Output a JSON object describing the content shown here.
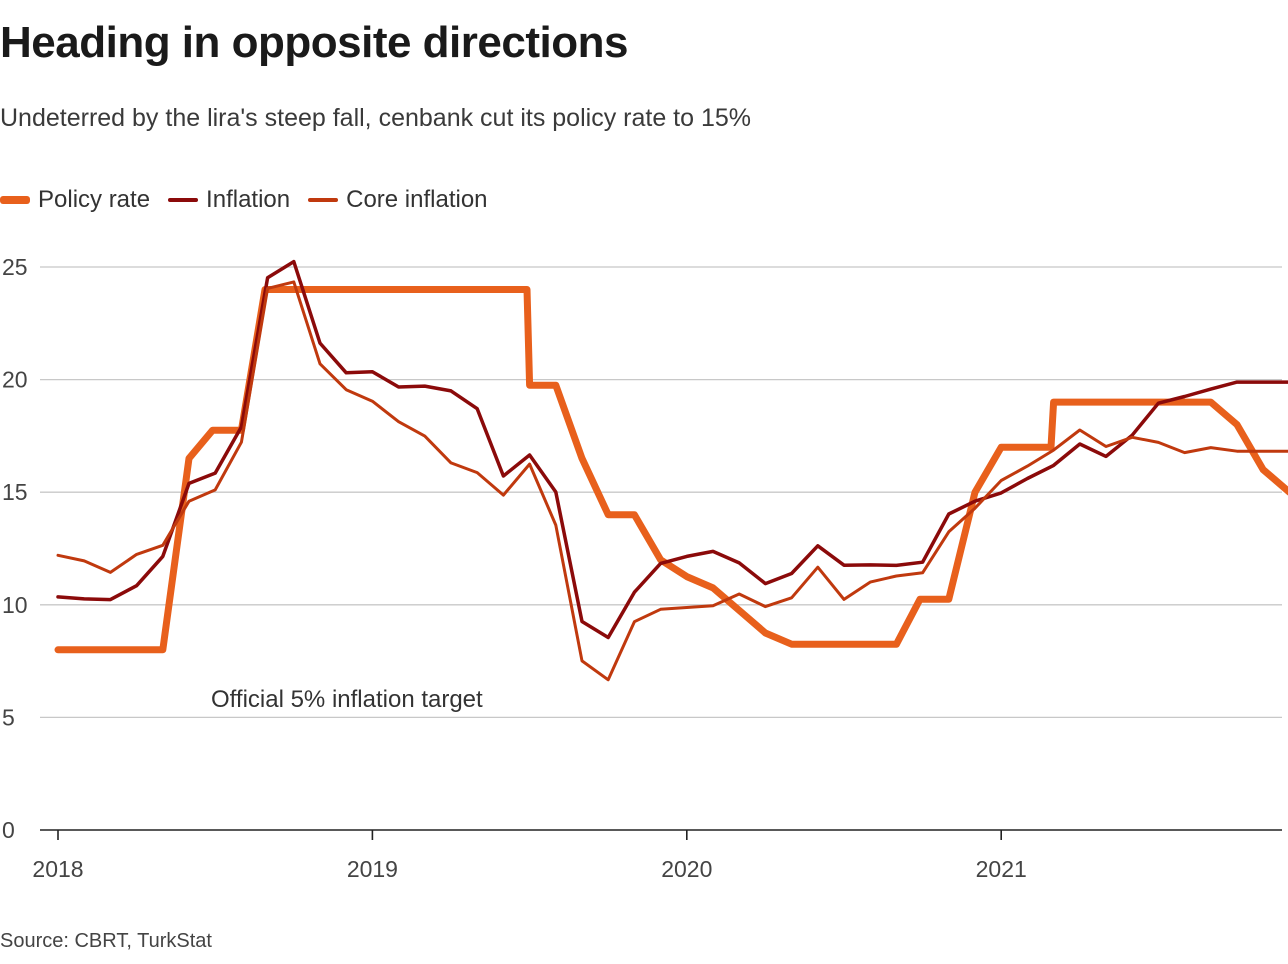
{
  "chart_data": {
    "type": "line",
    "title": "Heading in opposite directions",
    "subtitle": "Undeterred by the lira's steep fall, cenbank cut its policy rate to 15%",
    "xlabel": "",
    "ylabel": "",
    "ylim": [
      0,
      25
    ],
    "yticks": [
      0,
      5,
      10,
      15,
      20,
      25
    ],
    "grid": true,
    "legend_position": "top-left",
    "x_start": "2018-01",
    "x_tick_labels": [
      "2018",
      "2019",
      "2020",
      "2021"
    ],
    "x_tick_months": [
      0,
      12,
      24,
      36
    ],
    "annotation": "Official 5% inflation target",
    "annotation_value": 5,
    "series": [
      {
        "name": "Policy rate",
        "color": "#e8601c",
        "months": [
          0,
          1,
          2,
          3,
          4,
          5,
          5.9,
          6,
          7,
          7.9,
          8,
          9,
          10,
          11,
          12,
          13,
          14,
          15,
          16,
          17,
          17.9,
          18,
          19,
          20,
          21,
          22,
          23,
          24,
          25,
          26,
          27,
          28,
          29,
          30,
          31,
          32,
          32.9,
          33,
          34,
          35,
          36,
          37,
          37.9,
          38,
          39,
          40,
          41,
          42,
          43,
          44,
          45,
          46,
          47
        ],
        "values": [
          8,
          8,
          8,
          8,
          8,
          16.5,
          17.75,
          17.75,
          17.75,
          24,
          24,
          24,
          24,
          24,
          24,
          24,
          24,
          24,
          24,
          24,
          24,
          19.75,
          19.75,
          16.5,
          14,
          14,
          12,
          11.25,
          10.75,
          9.75,
          8.75,
          8.25,
          8.25,
          8.25,
          8.25,
          8.25,
          10.25,
          10.25,
          10.25,
          15,
          17,
          17,
          17,
          19,
          19,
          19,
          19,
          19,
          19,
          19,
          18,
          16,
          15
        ]
      },
      {
        "name": "Inflation",
        "color": "#8b0a0a",
        "months": [
          0,
          1,
          2,
          3,
          4,
          5,
          6,
          7,
          8,
          9,
          10,
          11,
          12,
          13,
          14,
          15,
          16,
          17,
          18,
          19,
          20,
          21,
          22,
          23,
          24,
          25,
          26,
          27,
          28,
          29,
          30,
          31,
          32,
          33,
          34,
          35,
          36,
          37,
          38,
          39,
          40,
          41,
          42,
          43,
          44,
          45,
          46,
          47
        ],
        "values": [
          10.35,
          10.26,
          10.23,
          10.85,
          12.15,
          15.39,
          15.85,
          17.9,
          24.52,
          25.24,
          21.62,
          20.3,
          20.35,
          19.67,
          19.71,
          19.5,
          18.71,
          15.72,
          16.65,
          15.01,
          9.26,
          8.55,
          10.56,
          11.84,
          12.15,
          12.37,
          11.86,
          10.94,
          11.39,
          12.62,
          11.76,
          11.77,
          11.75,
          11.89,
          14.03,
          14.6,
          14.97,
          15.61,
          16.19,
          17.14,
          16.59,
          17.53,
          18.95,
          19.25,
          19.58,
          19.89,
          19.89,
          19.89
        ]
      },
      {
        "name": "Core inflation",
        "color": "#c0390e",
        "months": [
          0,
          1,
          2,
          3,
          4,
          5,
          6,
          7,
          8,
          9,
          10,
          11,
          12,
          13,
          14,
          15,
          16,
          17,
          18,
          19,
          20,
          21,
          22,
          23,
          24,
          25,
          26,
          27,
          28,
          29,
          30,
          31,
          32,
          33,
          34,
          35,
          36,
          37,
          38,
          39,
          40,
          41,
          42,
          43,
          44,
          45,
          46,
          47
        ],
        "values": [
          12.2,
          11.95,
          11.44,
          12.24,
          12.64,
          14.6,
          15.1,
          17.22,
          24.05,
          24.34,
          20.7,
          19.55,
          19.04,
          18.13,
          17.49,
          16.3,
          15.87,
          14.87,
          16.25,
          13.54,
          7.51,
          6.67,
          9.25,
          9.8,
          9.88,
          9.96,
          10.48,
          9.92,
          10.31,
          11.67,
          10.24,
          11.01,
          11.28,
          11.42,
          13.24,
          14.29,
          15.52,
          16.16,
          16.87,
          17.76,
          17.03,
          17.44,
          17.21,
          16.76,
          16.98,
          16.82,
          16.82,
          16.82
        ]
      }
    ],
    "source": "Source: CBRT, TurkStat"
  }
}
